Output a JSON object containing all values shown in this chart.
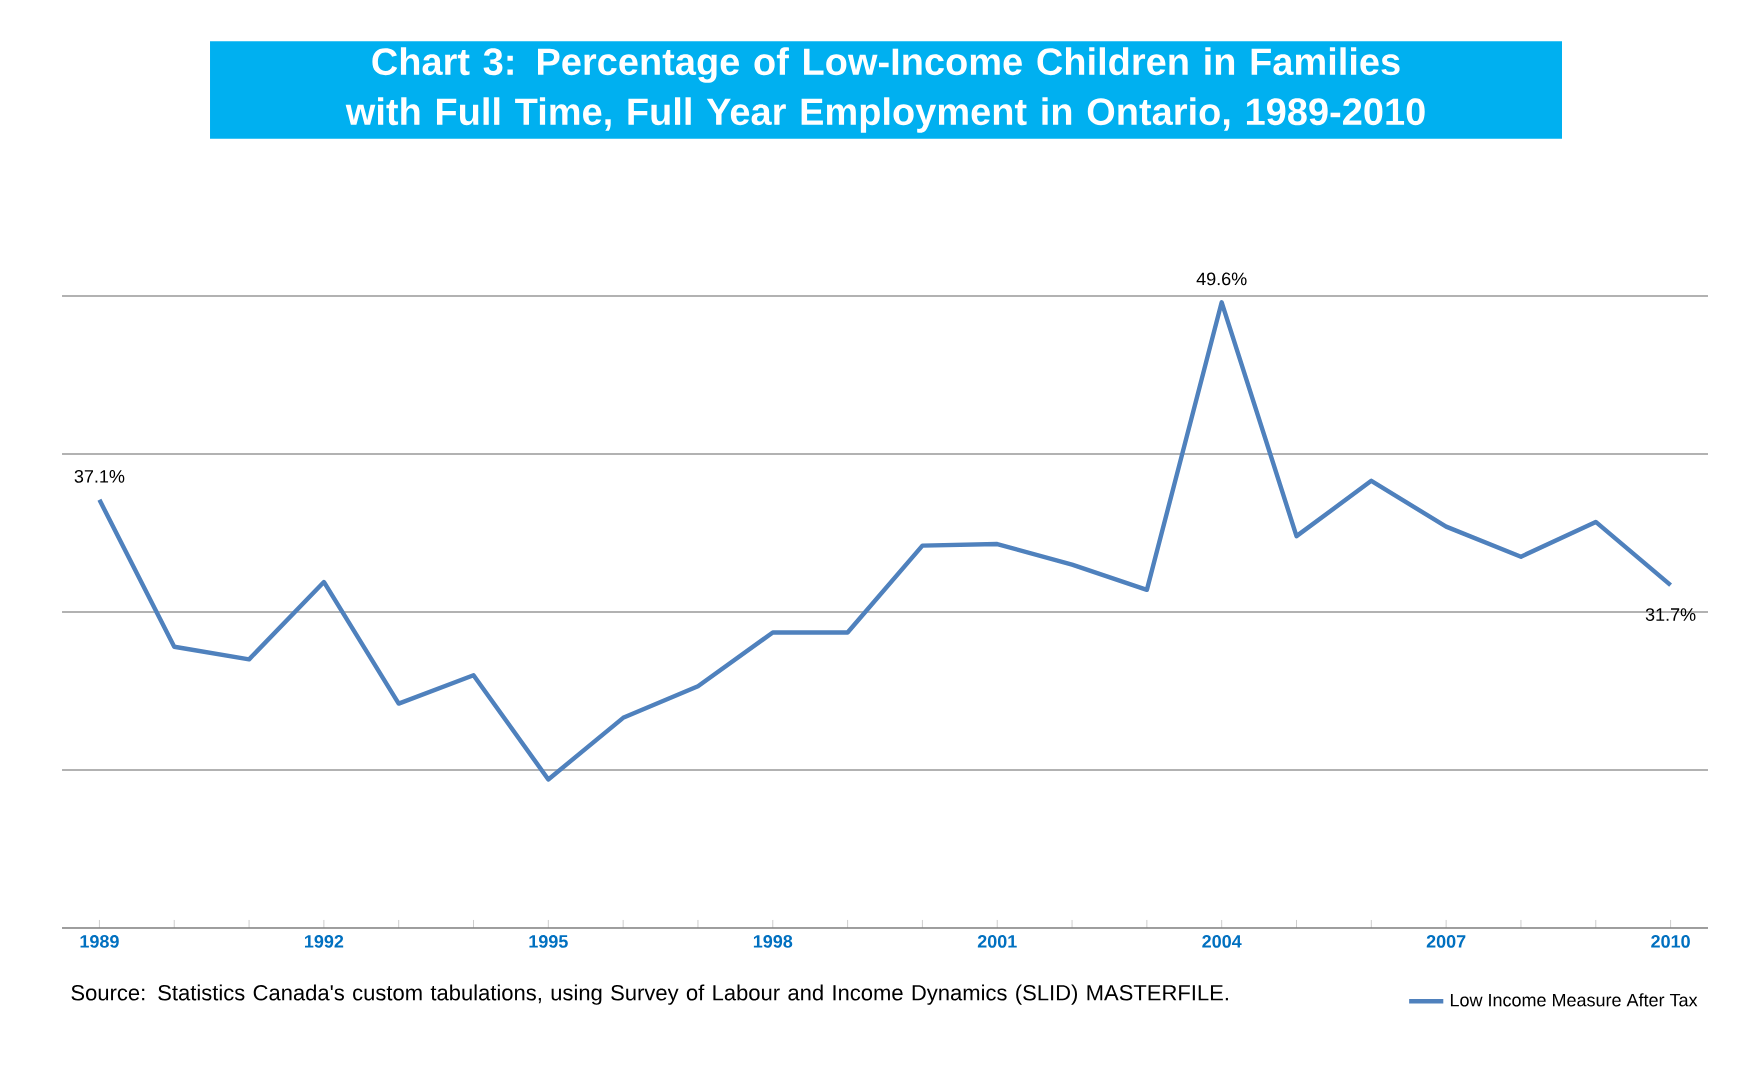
{
  "chart_data": {
    "type": "line",
    "title": "Chart 3: Percentage of Low-Income Children in Families with Full Time, Full Year Employment in Ontario,  1989-2010",
    "categories": [
      "1989",
      null,
      null,
      "1992",
      null,
      null,
      "1995",
      null,
      null,
      "1998",
      null,
      null,
      "2001",
      null,
      null,
      "2004",
      null,
      null,
      "2007",
      null,
      null,
      "2010"
    ],
    "series": [
      {
        "name": "Low Income Measure After Tax",
        "color": "#4f81bd",
        "values": [
          37.1,
          27.8,
          27.0,
          31.9,
          24.2,
          26.0,
          19.4,
          23.3,
          25.3,
          28.7,
          28.7,
          34.2,
          34.3,
          33.0,
          31.4,
          49.6,
          34.8,
          38.3,
          35.4,
          33.5,
          35.7,
          31.7
        ],
        "value_labels": [
          "37.1%",
          null,
          null,
          null,
          null,
          null,
          null,
          null,
          null,
          null,
          null,
          null,
          null,
          null,
          null,
          "49.6%",
          null,
          null,
          null,
          null,
          null,
          "31.7%"
        ]
      }
    ],
    "ylim": [
      10,
      50
    ],
    "yticks": [
      {
        "value": 10,
        "label": null
      },
      {
        "value": 20,
        "label": null
      },
      {
        "value": 30,
        "label": null
      },
      {
        "value": 40,
        "label": null
      },
      {
        "value": 50,
        "label": null
      }
    ],
    "grid": "y",
    "legend": "bottom right",
    "marker": "none",
    "line_style": "solid",
    "annotations": [
      "Source: Statistics Canada's custom tabulations, using Survey of Labour and Income Dynamics (SLID) MASTERFILE."
    ]
  }
}
